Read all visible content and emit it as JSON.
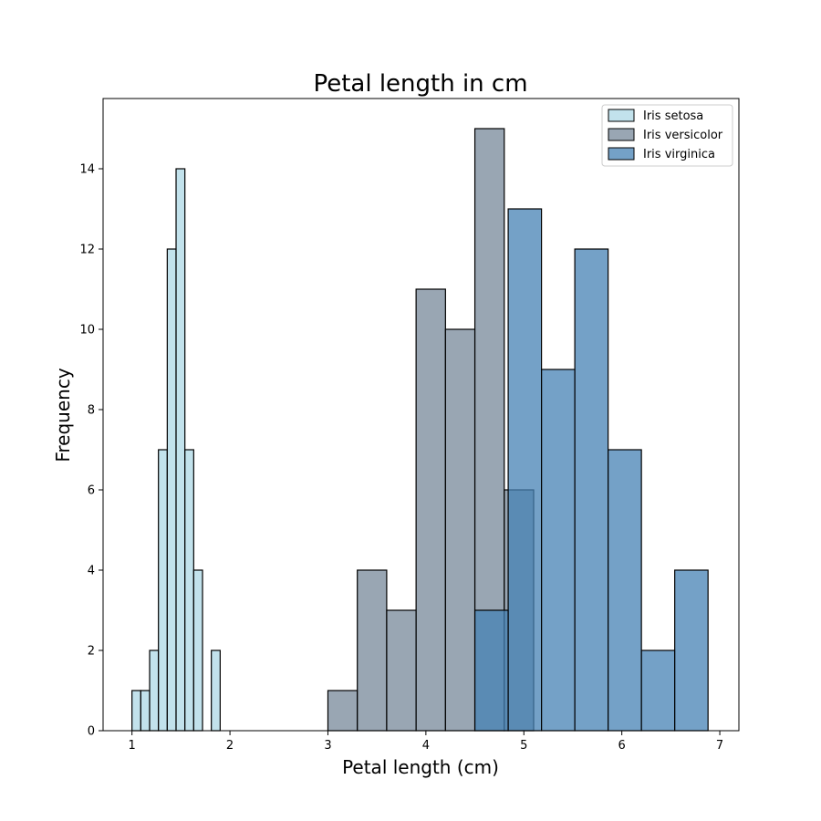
{
  "chart_data": {
    "type": "bar",
    "title": "Petal length in cm",
    "xlabel": "Petal length (cm)",
    "ylabel": "Frequency",
    "xlim": [
      0.705,
      7.195
    ],
    "ylim": [
      0,
      15.75
    ],
    "xticks": [
      1,
      2,
      3,
      4,
      5,
      6,
      7
    ],
    "yticks": [
      0,
      2,
      4,
      6,
      8,
      10,
      12,
      14
    ],
    "grid": false,
    "legend_position": "top-right",
    "series": [
      {
        "name": "Iris setosa",
        "color": "#add8e6",
        "bins": [
          {
            "x0": 1.0,
            "x1": 1.09,
            "count": 1
          },
          {
            "x0": 1.09,
            "x1": 1.18,
            "count": 1
          },
          {
            "x0": 1.18,
            "x1": 1.27,
            "count": 2
          },
          {
            "x0": 1.27,
            "x1": 1.36,
            "count": 7
          },
          {
            "x0": 1.36,
            "x1": 1.45,
            "count": 12
          },
          {
            "x0": 1.45,
            "x1": 1.54,
            "count": 14
          },
          {
            "x0": 1.54,
            "x1": 1.63,
            "count": 7
          },
          {
            "x0": 1.63,
            "x1": 1.72,
            "count": 4
          },
          {
            "x0": 1.72,
            "x1": 1.81,
            "count": 0
          },
          {
            "x0": 1.81,
            "x1": 1.9,
            "count": 2
          }
        ]
      },
      {
        "name": "Iris versicolor",
        "color": "#778899",
        "bins": [
          {
            "x0": 3.0,
            "x1": 3.3,
            "count": 1
          },
          {
            "x0": 3.3,
            "x1": 3.6,
            "count": 4
          },
          {
            "x0": 3.6,
            "x1": 3.9,
            "count": 3
          },
          {
            "x0": 3.9,
            "x1": 4.2,
            "count": 11
          },
          {
            "x0": 4.2,
            "x1": 4.5,
            "count": 10
          },
          {
            "x0": 4.5,
            "x1": 4.8,
            "count": 15
          },
          {
            "x0": 4.8,
            "x1": 5.1,
            "count": 6
          }
        ]
      },
      {
        "name": "Iris virginica",
        "color": "#4682b4",
        "bins": [
          {
            "x0": 4.5,
            "x1": 4.84,
            "count": 3
          },
          {
            "x0": 4.84,
            "x1": 5.18,
            "count": 13
          },
          {
            "x0": 5.18,
            "x1": 5.52,
            "count": 9
          },
          {
            "x0": 5.52,
            "x1": 5.86,
            "count": 12
          },
          {
            "x0": 5.86,
            "x1": 6.2,
            "count": 7
          },
          {
            "x0": 6.2,
            "x1": 6.54,
            "count": 2
          },
          {
            "x0": 6.54,
            "x1": 6.88,
            "count": 4
          }
        ]
      }
    ]
  }
}
